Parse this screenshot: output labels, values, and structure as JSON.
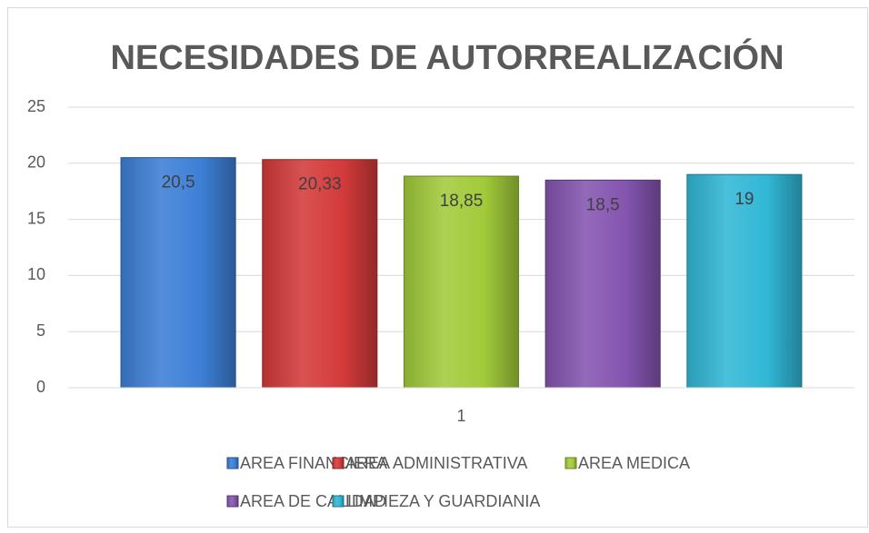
{
  "chart_data": {
    "type": "bar",
    "title": "NECESIDADES DE AUTORREALIZACIÓN",
    "categories": [
      "1"
    ],
    "series": [
      {
        "name": "AREA FINANCIERA",
        "color": "#3d7fd6",
        "values": [
          20.5
        ],
        "value_labels": [
          "20,5"
        ]
      },
      {
        "name": "AREA ADMINISTRATIVA",
        "color": "#d43a3a",
        "values": [
          20.33
        ],
        "value_labels": [
          "20,33"
        ]
      },
      {
        "name": "AREA MEDICA",
        "color": "#a2cb3a",
        "values": [
          18.85
        ],
        "value_labels": [
          "18,85"
        ]
      },
      {
        "name": "AREA DE CALIDAD",
        "color": "#8455b0",
        "values": [
          18.5
        ],
        "value_labels": [
          "18,5"
        ]
      },
      {
        "name": "LIMPIEZA Y GUARDIANIA",
        "color": "#31b7d6",
        "values": [
          19
        ],
        "value_labels": [
          "19"
        ]
      }
    ],
    "ylim": [
      0,
      25
    ],
    "yticks": [
      0,
      5,
      10,
      15,
      20,
      25
    ],
    "grid": true,
    "legend": "bottom"
  }
}
